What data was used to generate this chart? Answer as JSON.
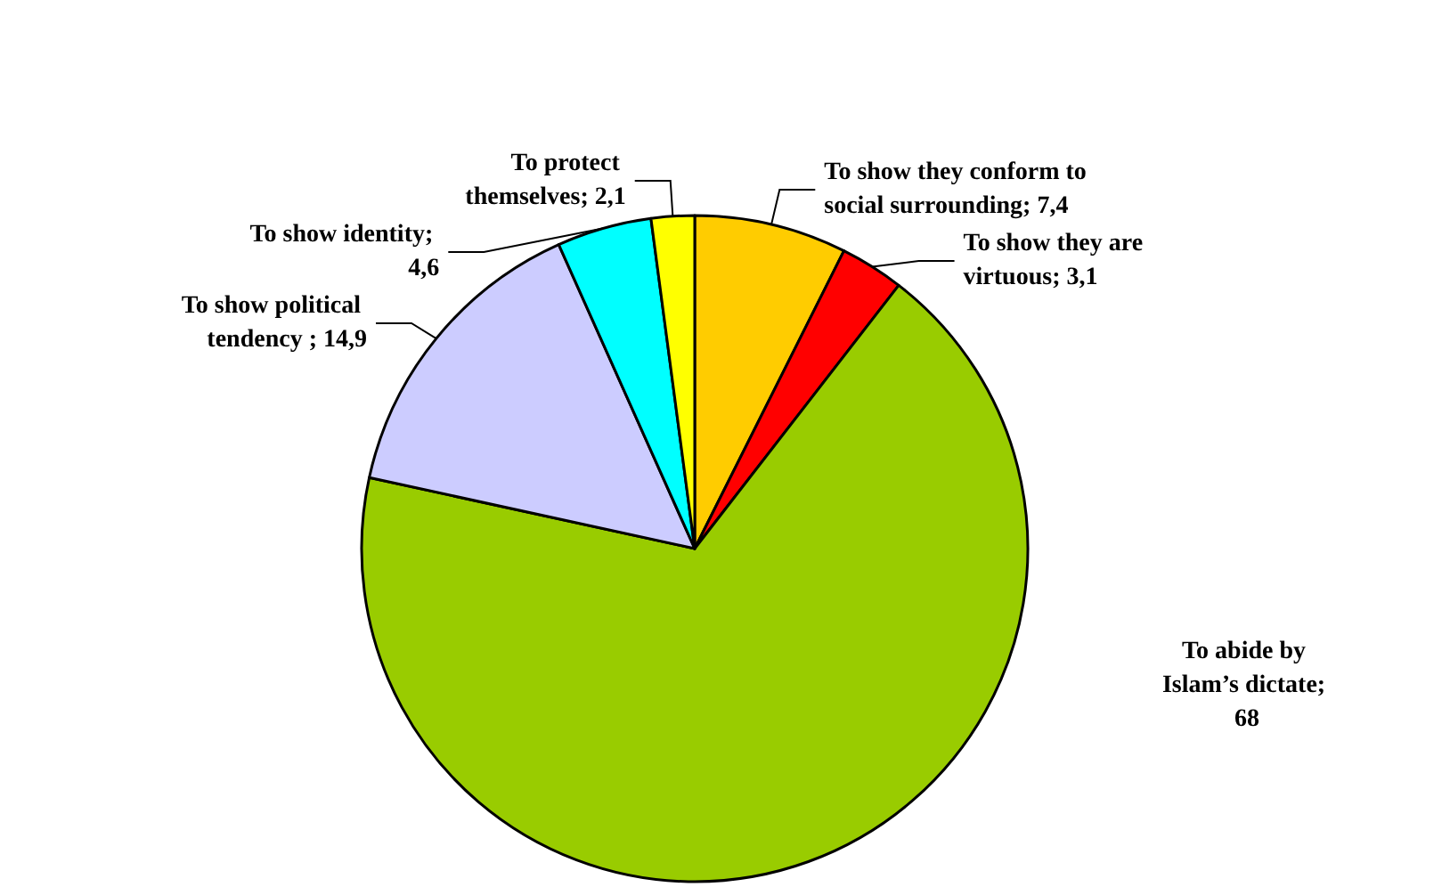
{
  "chart_data": {
    "type": "pie",
    "categories": [
      "To show they conform to social surrounding; 7,4",
      "To show they are virtuous; 3,1",
      "To abide by Islam’s dictate; 68",
      "To show political tendency ; 14,9",
      "To show identity; 4,6",
      "To protect themselves; 2,1"
    ],
    "values": [
      7.4,
      3.1,
      68,
      14.9,
      4.6,
      2.1
    ],
    "colors": [
      "#ffcc00",
      "#ff0000",
      "#99cc00",
      "#ccccff",
      "#00ffff",
      "#ffff00"
    ]
  }
}
